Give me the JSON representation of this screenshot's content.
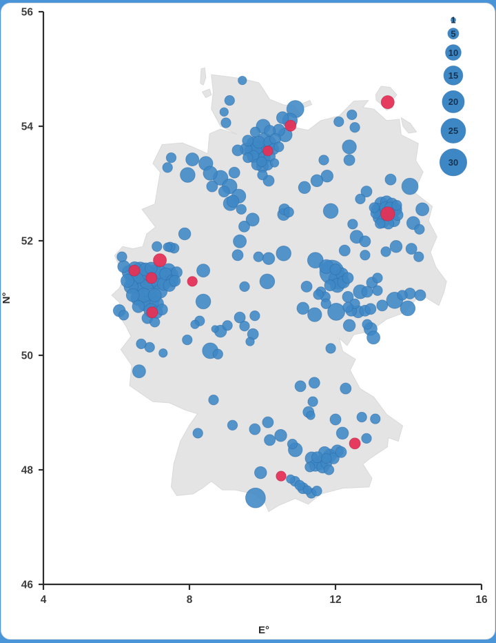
{
  "figure": {
    "x_axis": {
      "label": "E°",
      "range": [
        4,
        16
      ],
      "ticks": [
        4,
        8,
        12,
        16
      ]
    },
    "y_axis": {
      "label": "N°",
      "range": [
        46,
        56
      ],
      "ticks": [
        46,
        48,
        50,
        52,
        54,
        56
      ]
    },
    "legend": {
      "sizes": [
        1,
        5,
        10,
        15,
        20,
        25,
        30
      ]
    },
    "colors": {
      "bubble": "#3d87c5",
      "bubble_stroke": "#2a6aa5",
      "highlight": "#e43256",
      "highlight_stroke": "#bb2147",
      "map_fill": "#e4e4e4",
      "map_stroke": "#d9d9d9",
      "axis": "#2b2b2b",
      "frame": "#4a94d8",
      "card": "#ffffff"
    }
  },
  "chart_data": {
    "type": "scatter",
    "subtype": "bubble-map-germany",
    "xlabel": "E°",
    "ylabel": "N°",
    "xlim": [
      4,
      16
    ],
    "ylim": [
      46,
      56
    ],
    "legend_sizes": [
      1,
      5,
      10,
      15,
      20,
      25,
      30
    ],
    "columns": [
      "lon_E",
      "lat_N",
      "count"
    ],
    "points_blue": [
      [
        9.45,
        54.8,
        3
      ],
      [
        9.1,
        54.45,
        4
      ],
      [
        8.95,
        54.25,
        3
      ],
      [
        9.0,
        54.06,
        4
      ],
      [
        9.32,
        53.58,
        5
      ],
      [
        9.23,
        53.19,
        5
      ],
      [
        10.9,
        54.3,
        12
      ],
      [
        10.55,
        54.15,
        6
      ],
      [
        10.75,
        54.1,
        9
      ],
      [
        10.45,
        53.93,
        6
      ],
      [
        10.62,
        53.85,
        8
      ],
      [
        10.02,
        54.0,
        8
      ],
      [
        9.8,
        53.9,
        4
      ],
      [
        10.2,
        53.92,
        5
      ],
      [
        9.6,
        53.75,
        5
      ],
      [
        9.75,
        53.7,
        7
      ],
      [
        9.9,
        53.72,
        6
      ],
      [
        10.05,
        53.76,
        8
      ],
      [
        10.2,
        53.72,
        6
      ],
      [
        10.35,
        53.78,
        5
      ],
      [
        9.55,
        53.6,
        6
      ],
      [
        9.7,
        53.58,
        8
      ],
      [
        9.85,
        53.63,
        7
      ],
      [
        10.0,
        53.6,
        11
      ],
      [
        10.15,
        53.62,
        7
      ],
      [
        10.3,
        53.6,
        5
      ],
      [
        10.45,
        53.64,
        4
      ],
      [
        9.6,
        53.45,
        4
      ],
      [
        9.75,
        53.47,
        6
      ],
      [
        9.9,
        53.49,
        8
      ],
      [
        10.05,
        53.45,
        6
      ],
      [
        10.2,
        53.47,
        5
      ],
      [
        9.85,
        53.33,
        5
      ],
      [
        10.0,
        53.3,
        6
      ],
      [
        10.15,
        53.32,
        4
      ],
      [
        10.33,
        53.36,
        3
      ],
      [
        10.0,
        53.15,
        4
      ],
      [
        10.17,
        53.05,
        5
      ],
      [
        7.5,
        53.45,
        4
      ],
      [
        7.4,
        53.28,
        4
      ],
      [
        8.08,
        53.42,
        7
      ],
      [
        7.95,
        53.15,
        9
      ],
      [
        8.45,
        53.35,
        8
      ],
      [
        8.57,
        53.18,
        8
      ],
      [
        8.85,
        53.1,
        9
      ],
      [
        8.62,
        52.95,
        5
      ],
      [
        9.1,
        52.95,
        9
      ],
      [
        8.95,
        52.86,
        5
      ],
      [
        9.35,
        52.78,
        8
      ],
      [
        9.12,
        52.65,
        8
      ],
      [
        9.98,
        53.38,
        4
      ],
      [
        10.58,
        52.46,
        6
      ],
      [
        9.73,
        52.37,
        7
      ],
      [
        9.5,
        52.25,
        5
      ],
      [
        9.19,
        52.69,
        6
      ],
      [
        9.42,
        52.55,
        4
      ],
      [
        11.87,
        52.52,
        9
      ],
      [
        10.6,
        52.55,
        5
      ],
      [
        10.72,
        52.5,
        4
      ],
      [
        7.11,
        51.9,
        4
      ],
      [
        7.4,
        51.89,
        3
      ],
      [
        7.58,
        51.87,
        4
      ],
      [
        7.87,
        52.12,
        6
      ],
      [
        7.47,
        51.89,
        4
      ],
      [
        9.32,
        51.75,
        5
      ],
      [
        10.17,
        51.69,
        6
      ],
      [
        9.38,
        51.99,
        7
      ],
      [
        6.2,
        51.55,
        6
      ],
      [
        6.35,
        51.45,
        8
      ],
      [
        6.5,
        51.52,
        7
      ],
      [
        6.65,
        51.5,
        9
      ],
      [
        6.8,
        51.5,
        7
      ],
      [
        6.95,
        51.52,
        6
      ],
      [
        6.3,
        51.3,
        7
      ],
      [
        6.45,
        51.35,
        9
      ],
      [
        6.6,
        51.38,
        8
      ],
      [
        6.75,
        51.4,
        10
      ],
      [
        6.9,
        51.42,
        8
      ],
      [
        7.05,
        51.45,
        9
      ],
      [
        7.2,
        51.45,
        7
      ],
      [
        7.35,
        51.42,
        6
      ],
      [
        7.5,
        51.4,
        8
      ],
      [
        7.65,
        51.45,
        5
      ],
      [
        7.43,
        51.48,
        8
      ],
      [
        7.53,
        51.3,
        6
      ],
      [
        6.4,
        51.2,
        8
      ],
      [
        6.55,
        51.22,
        10
      ],
      [
        6.7,
        51.25,
        11
      ],
      [
        6.85,
        51.28,
        9
      ],
      [
        7.0,
        51.3,
        10
      ],
      [
        7.15,
        51.28,
        8
      ],
      [
        7.3,
        51.25,
        7
      ],
      [
        7.45,
        51.22,
        6
      ],
      [
        7.6,
        51.3,
        5
      ],
      [
        7.2,
        51.12,
        8
      ],
      [
        6.45,
        51.05,
        7
      ],
      [
        6.6,
        51.0,
        9
      ],
      [
        6.75,
        51.05,
        8
      ],
      [
        6.9,
        51.08,
        10
      ],
      [
        7.05,
        51.05,
        7
      ],
      [
        6.95,
        50.95,
        11
      ],
      [
        7.1,
        50.9,
        8
      ],
      [
        6.8,
        50.9,
        9
      ],
      [
        6.6,
        50.85,
        6
      ],
      [
        6.95,
        50.78,
        8
      ],
      [
        7.1,
        50.75,
        6
      ],
      [
        7.25,
        50.8,
        5
      ],
      [
        6.85,
        50.65,
        5
      ],
      [
        7.05,
        50.58,
        4
      ],
      [
        6.08,
        50.78,
        6
      ],
      [
        6.2,
        50.7,
        4
      ],
      [
        6.15,
        51.72,
        4
      ],
      [
        8.38,
        51.48,
        7
      ],
      [
        8.38,
        50.94,
        9
      ],
      [
        6.91,
        50.14,
        4
      ],
      [
        6.68,
        50.2,
        4
      ],
      [
        7.28,
        50.04,
        3
      ],
      [
        7.94,
        50.27,
        4
      ],
      [
        6.62,
        49.72,
        7
      ],
      [
        8.57,
        50.08,
        10
      ],
      [
        8.78,
        50.02,
        4
      ],
      [
        8.28,
        50.6,
        4
      ],
      [
        8.15,
        50.54,
        3
      ],
      [
        9.04,
        50.52,
        4
      ],
      [
        9.38,
        50.66,
        5
      ],
      [
        8.85,
        50.42,
        6
      ],
      [
        8.66,
        49.22,
        4
      ],
      [
        8.23,
        48.64,
        4
      ],
      [
        8.7,
        50.46,
        2
      ],
      [
        10.13,
        51.29,
        9
      ],
      [
        9.51,
        51.2,
        4
      ],
      [
        9.89,
        51.72,
        4
      ],
      [
        10.58,
        51.78,
        9
      ],
      [
        11.45,
        51.66,
        10
      ],
      [
        11.11,
        50.82,
        6
      ],
      [
        9.79,
        50.69,
        4
      ],
      [
        9.51,
        50.51,
        4
      ],
      [
        9.74,
        50.37,
        5
      ],
      [
        9.66,
        50.24,
        3
      ],
      [
        11.6,
        51.11,
        4
      ],
      [
        11.72,
        51.02,
        4
      ],
      [
        11.21,
        51.2,
        5
      ],
      [
        11.53,
        51.06,
        4
      ],
      [
        11.74,
        50.9,
        4
      ],
      [
        11.43,
        50.71,
        8
      ],
      [
        11.9,
        51.45,
        24
      ],
      [
        12.08,
        51.32,
        15
      ],
      [
        11.75,
        51.55,
        8
      ],
      [
        12.0,
        51.5,
        5
      ],
      [
        12.18,
        51.42,
        6
      ],
      [
        12.22,
        51.28,
        6
      ],
      [
        12.05,
        51.22,
        8
      ],
      [
        11.85,
        51.22,
        5
      ],
      [
        12.34,
        51.35,
        5
      ],
      [
        12.68,
        51.11,
        8
      ],
      [
        12.34,
        51.02,
        5
      ],
      [
        12.53,
        50.9,
        4
      ],
      [
        13.0,
        51.27,
        5
      ],
      [
        13.15,
        51.35,
        4
      ],
      [
        12.25,
        51.83,
        5
      ],
      [
        12.81,
        51.75,
        4
      ],
      [
        13.38,
        51.81,
        4
      ],
      [
        13.66,
        51.9,
        6
      ],
      [
        14.08,
        51.86,
        5
      ],
      [
        14.28,
        51.72,
        4
      ],
      [
        12.02,
        50.76,
        12
      ],
      [
        12.34,
        50.84,
        4
      ],
      [
        12.43,
        50.78,
        5
      ],
      [
        12.62,
        50.76,
        6
      ],
      [
        12.81,
        50.78,
        5
      ],
      [
        12.96,
        50.81,
        5
      ],
      [
        12.87,
        50.54,
        4
      ],
      [
        12.38,
        50.52,
        6
      ],
      [
        12.96,
        50.46,
        7
      ],
      [
        13.04,
        50.31,
        7
      ],
      [
        13.62,
        50.96,
        11
      ],
      [
        13.98,
        50.82,
        9
      ],
      [
        14.04,
        51.08,
        5
      ],
      [
        13.83,
        51.05,
        4
      ],
      [
        13.28,
        50.87,
        5
      ],
      [
        12.87,
        51.11,
        5
      ],
      [
        13.15,
        51.13,
        4
      ],
      [
        14.32,
        51.05,
        5
      ],
      [
        11.87,
        50.12,
        4
      ],
      [
        12.28,
        49.42,
        5
      ],
      [
        13.15,
        52.55,
        6
      ],
      [
        13.25,
        52.65,
        7
      ],
      [
        13.4,
        52.68,
        6
      ],
      [
        13.55,
        52.65,
        5
      ],
      [
        13.65,
        52.55,
        6
      ],
      [
        13.7,
        52.45,
        5
      ],
      [
        13.6,
        52.35,
        6
      ],
      [
        13.45,
        52.3,
        5
      ],
      [
        13.3,
        52.33,
        6
      ],
      [
        13.18,
        52.4,
        5
      ],
      [
        13.1,
        52.48,
        4
      ],
      [
        13.3,
        52.5,
        8
      ],
      [
        13.55,
        52.5,
        7
      ],
      [
        13.5,
        52.58,
        5
      ],
      [
        13.25,
        52.45,
        6
      ],
      [
        13.38,
        52.58,
        6
      ],
      [
        13.22,
        52.3,
        4
      ],
      [
        13.68,
        52.62,
        4
      ],
      [
        13.06,
        52.58,
        4
      ],
      [
        14.04,
        52.95,
        11
      ],
      [
        14.38,
        52.55,
        7
      ],
      [
        14.13,
        52.31,
        7
      ],
      [
        12.58,
        52.07,
        7
      ],
      [
        12.81,
        51.99,
        5
      ],
      [
        12.47,
        52.29,
        4
      ],
      [
        12.68,
        52.73,
        4
      ],
      [
        12.85,
        52.86,
        5
      ],
      [
        13.51,
        53.07,
        5
      ],
      [
        12.38,
        53.41,
        5
      ],
      [
        12.38,
        53.64,
        8
      ],
      [
        11.68,
        53.41,
        4
      ],
      [
        11.77,
        53.13,
        6
      ],
      [
        11.49,
        53.05,
        6
      ],
      [
        11.15,
        52.93,
        6
      ],
      [
        12.09,
        54.08,
        4
      ],
      [
        12.53,
        53.98,
        4
      ],
      [
        12.45,
        54.2,
        4
      ],
      [
        14.3,
        52.2,
        4
      ],
      [
        11.04,
        49.46,
        5
      ],
      [
        11.42,
        49.52,
        5
      ],
      [
        11.38,
        49.19,
        4
      ],
      [
        11.26,
        49.01,
        5
      ],
      [
        11.32,
        48.95,
        3
      ],
      [
        12.0,
        48.88,
        5
      ],
      [
        12.72,
        48.92,
        4
      ],
      [
        12.19,
        48.64,
        6
      ],
      [
        12.85,
        48.55,
        4
      ],
      [
        13.09,
        48.89,
        4
      ],
      [
        11.35,
        48.2,
        7
      ],
      [
        11.5,
        48.22,
        5
      ],
      [
        11.58,
        48.12,
        8
      ],
      [
        11.45,
        48.08,
        6
      ],
      [
        11.65,
        48.05,
        6
      ],
      [
        11.75,
        48.12,
        5
      ],
      [
        11.82,
        48.0,
        4
      ],
      [
        11.3,
        48.05,
        4
      ],
      [
        11.7,
        48.3,
        6
      ],
      [
        11.85,
        48.25,
        7
      ],
      [
        11.95,
        48.2,
        5
      ],
      [
        12.05,
        48.33,
        6
      ],
      [
        11.75,
        48.2,
        4
      ],
      [
        12.15,
        48.31,
        5
      ],
      [
        10.9,
        48.35,
        8
      ],
      [
        10.82,
        48.45,
        4
      ],
      [
        10.2,
        48.52,
        5
      ],
      [
        10.5,
        48.6,
        6
      ],
      [
        10.15,
        48.83,
        5
      ],
      [
        9.79,
        48.71,
        5
      ],
      [
        9.95,
        47.95,
        6
      ],
      [
        9.18,
        48.78,
        4
      ],
      [
        9.81,
        47.51,
        16
      ],
      [
        10.89,
        47.8,
        4
      ],
      [
        11.02,
        47.73,
        4
      ],
      [
        11.11,
        47.68,
        5
      ],
      [
        11.34,
        47.59,
        4
      ],
      [
        11.23,
        47.65,
        3
      ],
      [
        10.77,
        47.84,
        3
      ],
      [
        11.49,
        47.63,
        4
      ]
    ],
    "points_red": [
      [
        13.43,
        54.42,
        7
      ],
      [
        10.77,
        54.01,
        5
      ],
      [
        10.15,
        53.57,
        4
      ],
      [
        7.19,
        51.66,
        7
      ],
      [
        6.49,
        51.48,
        5
      ],
      [
        6.96,
        51.35,
        5
      ],
      [
        8.08,
        51.29,
        4
      ],
      [
        6.98,
        50.75,
        5
      ],
      [
        13.43,
        52.47,
        8
      ],
      [
        12.53,
        48.46,
        5
      ],
      [
        10.51,
        47.89,
        4
      ]
    ]
  }
}
